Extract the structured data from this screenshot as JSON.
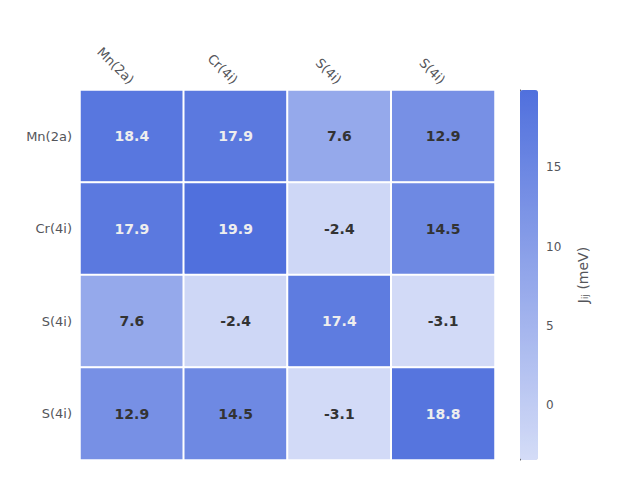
{
  "chart_data": {
    "type": "heatmap",
    "categories": [
      "Mn(2a)",
      "Cr(4i)",
      "S(4i)",
      "S(4i)"
    ],
    "values": [
      [
        18.4,
        17.9,
        7.6,
        12.9
      ],
      [
        17.9,
        19.9,
        -2.4,
        14.5
      ],
      [
        7.6,
        -2.4,
        17.4,
        -3.1
      ],
      [
        12.9,
        14.5,
        -3.1,
        18.8
      ]
    ],
    "colorbar_label": "Jᵢⱼ (meV)",
    "colorbar_range": [
      -3.5,
      19.9
    ],
    "colorbar_ticks": [
      0,
      5,
      10,
      15
    ],
    "data_labels": true
  }
}
